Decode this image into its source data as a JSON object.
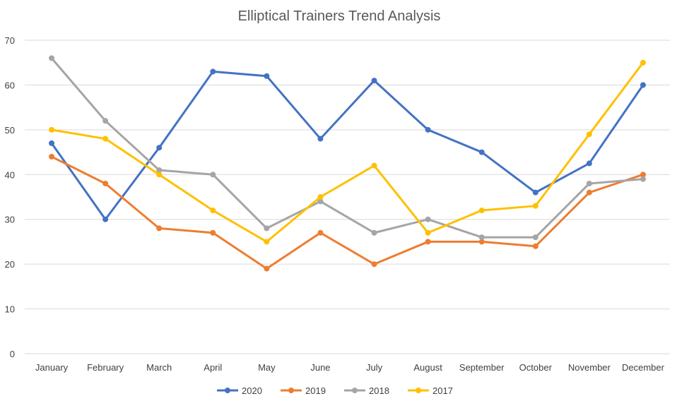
{
  "chart_data": {
    "type": "line",
    "title": "Elliptical Trainers Trend Analysis",
    "xlabel": "",
    "ylabel": "",
    "ylim": [
      0,
      70
    ],
    "yticks": [
      0,
      10,
      20,
      30,
      40,
      50,
      60,
      70
    ],
    "grid": true,
    "legend_position": "bottom",
    "categories": [
      "January",
      "February",
      "March",
      "April",
      "May",
      "June",
      "July",
      "August",
      "September",
      "October",
      "November",
      "December"
    ],
    "series": [
      {
        "name": "2020",
        "color": "#4472c4",
        "values": [
          47,
          30,
          46,
          63,
          62,
          48,
          61,
          50,
          45,
          36,
          42.5,
          60
        ]
      },
      {
        "name": "2019",
        "color": "#ed7d31",
        "values": [
          44,
          38,
          28,
          27,
          19,
          27,
          20,
          25,
          25,
          24,
          36,
          40
        ]
      },
      {
        "name": "2018",
        "color": "#a5a5a5",
        "values": [
          66,
          52,
          41,
          40,
          28,
          34,
          27,
          30,
          26,
          26,
          38,
          39
        ]
      },
      {
        "name": "2017",
        "color": "#ffc000",
        "values": [
          50,
          48,
          40,
          32,
          25,
          35,
          42,
          27,
          32,
          33,
          49,
          65
        ]
      }
    ]
  }
}
